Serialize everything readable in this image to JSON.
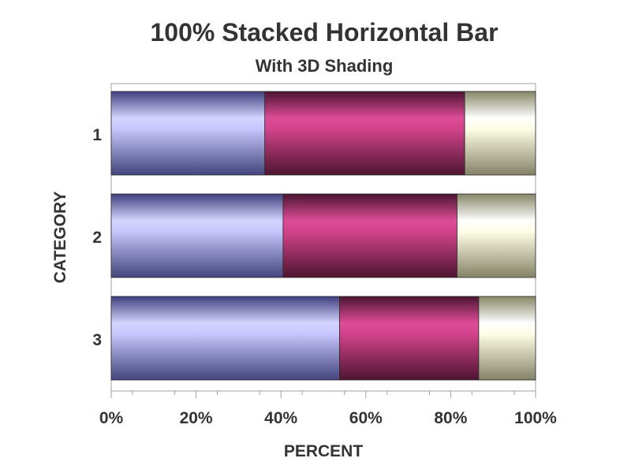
{
  "chart_data": {
    "type": "bar",
    "orientation": "horizontal",
    "stacked": "percent",
    "title": "100% Stacked Horizontal Bar",
    "subtitle": "With 3D Shading",
    "xlabel": "PERCENT",
    "ylabel": "CATEGORY",
    "xlim": [
      0,
      100
    ],
    "x_ticks": [
      "0%",
      "20%",
      "40%",
      "60%",
      "80%",
      "100%"
    ],
    "categories": [
      "1",
      "2",
      "3"
    ],
    "series": [
      {
        "values": [
          36.2,
          40.5,
          53.8
        ],
        "color": "#8a8af0"
      },
      {
        "values": [
          47.1,
          41.0,
          32.8
        ],
        "color": "#b8326e"
      },
      {
        "values": [
          16.7,
          18.5,
          13.4
        ],
        "color": "#e8e8b0"
      }
    ],
    "grid": false,
    "legend": "none"
  }
}
